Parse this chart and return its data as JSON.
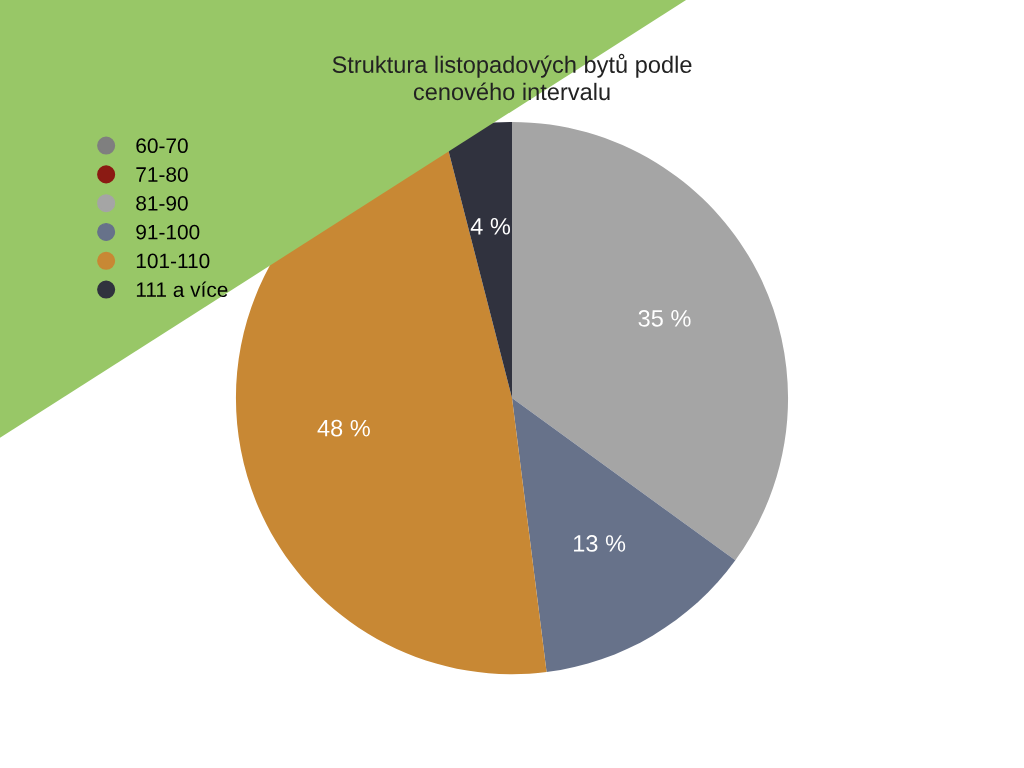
{
  "chart_data": {
    "type": "pie",
    "title": "Struktura listopadových bytů podle\ncenového intervalu",
    "categories": [
      "60-70",
      "71-80",
      "81-90",
      "91-100",
      "101-110",
      "111 a více"
    ],
    "values": [
      0,
      0,
      35,
      13,
      48,
      4
    ],
    "colors": [
      "#7f7f7f",
      "#8b1a13",
      "#a5a5a5",
      "#67728a",
      "#c88834",
      "#30323e"
    ],
    "value_labels": [
      null,
      null,
      "35 %",
      "13 %",
      "48 %",
      "4 %"
    ],
    "legend": "top left"
  }
}
